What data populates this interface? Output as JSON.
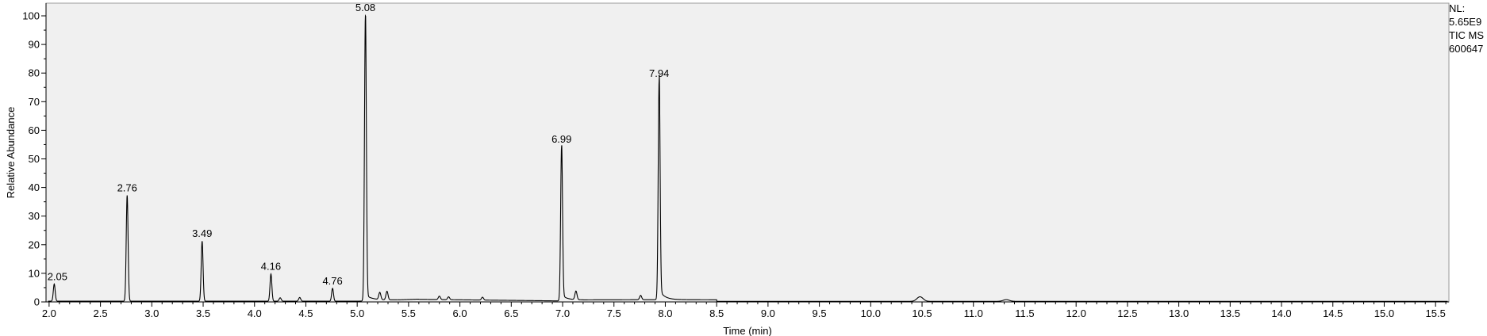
{
  "side_info": {
    "nl_label": "NL:",
    "nl_value": "5.65E9",
    "line3": "TIC MS",
    "line4": "600647"
  },
  "chart_data": {
    "type": "line",
    "title": "",
    "xlabel": "Time (min)",
    "ylabel": "Relative Abundance",
    "xlim": [
      1.97,
      15.63
    ],
    "ylim": [
      0,
      100
    ],
    "x_ticks": [
      2.0,
      2.5,
      3.0,
      3.5,
      4.0,
      4.5,
      5.0,
      5.5,
      6.0,
      6.5,
      7.0,
      7.5,
      8.0,
      8.5,
      9.0,
      9.5,
      10.0,
      10.5,
      11.0,
      11.5,
      12.0,
      12.5,
      13.0,
      13.5,
      14.0,
      14.5,
      15.0,
      15.5
    ],
    "x_tick_labels": [
      "2.0",
      "2.5",
      "3.0",
      "3.5",
      "4.0",
      "4.5",
      "5.0",
      "5.5",
      "6.0",
      "6.5",
      "7.0",
      "7.5",
      "8.0",
      "8.5",
      "9.0",
      "9.5",
      "10.0",
      "10.5",
      "11.0",
      "11.5",
      "12.0",
      "12.5",
      "13.0",
      "13.5",
      "14.0",
      "14.5",
      "15.0",
      "15.5"
    ],
    "y_ticks": [
      0,
      10,
      20,
      30,
      40,
      50,
      60,
      70,
      80,
      90,
      100
    ],
    "y_tick_labels": [
      "0",
      "10",
      "20",
      "30",
      "40",
      "50",
      "60",
      "70",
      "80",
      "90",
      "100"
    ],
    "grid": false,
    "background": "#f0f0f0",
    "line_color": "#000000",
    "peaks": [
      {
        "x": 2.05,
        "y": 6,
        "label": "2.05"
      },
      {
        "x": 2.76,
        "y": 37,
        "label": "2.76"
      },
      {
        "x": 3.49,
        "y": 21,
        "label": "3.49"
      },
      {
        "x": 4.16,
        "y": 9.5,
        "label": "4.16"
      },
      {
        "x": 4.76,
        "y": 4.5,
        "label": "4.76"
      },
      {
        "x": 5.08,
        "y": 100,
        "label": "5.08"
      },
      {
        "x": 6.99,
        "y": 54,
        "label": "6.99"
      },
      {
        "x": 7.94,
        "y": 77,
        "label": "7.94"
      }
    ],
    "minor_peaks": [
      {
        "x": 4.25,
        "y": 1.2
      },
      {
        "x": 4.44,
        "y": 1.3
      },
      {
        "x": 5.22,
        "y": 2.5
      },
      {
        "x": 5.29,
        "y": 3.0
      },
      {
        "x": 5.8,
        "y": 1.2
      },
      {
        "x": 5.89,
        "y": 1.0
      },
      {
        "x": 6.22,
        "y": 1.0
      },
      {
        "x": 7.13,
        "y": 3.0
      },
      {
        "x": 7.76,
        "y": 1.5
      },
      {
        "x": 10.48,
        "y": 1.6
      },
      {
        "x": 11.32,
        "y": 0.6
      }
    ]
  }
}
